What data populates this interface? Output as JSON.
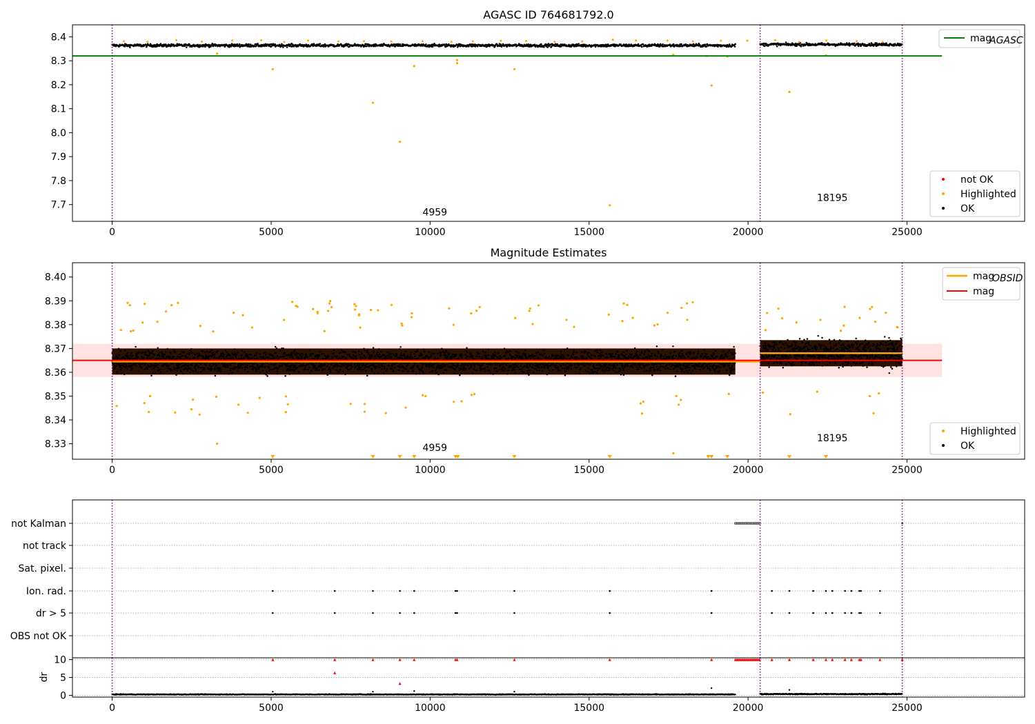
{
  "figure": {
    "colors": {
      "ok": "#000000",
      "highlighted": "#ffa500",
      "not_ok": "#ff0000",
      "agasc_line": "#008000",
      "mag_line": "#ff0000",
      "obsid_line": "#ffa500",
      "obs_boundary": "#800080",
      "band": "#ffc0c0",
      "grid": "#b0b0b0"
    }
  },
  "chart_data": [
    {
      "type": "scatter",
      "title": "AGASC ID 764681792.0",
      "xlabel": "",
      "ylabel": "",
      "xlim": [
        -1250,
        28700
      ],
      "ylim": [
        7.63,
        8.45
      ],
      "xticks": [
        0,
        5000,
        10000,
        15000,
        20000,
        25000
      ],
      "yticks": [
        7.7,
        7.8,
        7.9,
        8.0,
        8.1,
        8.2,
        8.3,
        8.4
      ],
      "grid": false,
      "obs_boundaries": [
        0,
        20380,
        24850
      ],
      "obsid_labels": [
        {
          "text": "4959",
          "x": 10150,
          "y": 7.655
        },
        {
          "text": "18195",
          "x": 22650,
          "y": 7.715
        }
      ],
      "lines": [
        {
          "name": "mag_AGASC",
          "legend_main": "mag",
          "legend_sub": "AGASC",
          "y": 8.32,
          "x": [
            0,
            26100
          ],
          "color": "#008000"
        }
      ],
      "ok_bands": [
        {
          "x": [
            0,
            19600
          ],
          "y_center": 8.364,
          "spread": 0.012
        },
        {
          "x": [
            20380,
            24850
          ],
          "y_center": 8.368,
          "spread": 0.012
        }
      ],
      "highlighted_points": [
        [
          5050,
          8.265
        ],
        [
          9500,
          8.278
        ],
        [
          10850,
          8.29
        ],
        [
          10850,
          8.303
        ],
        [
          12650,
          8.265
        ],
        [
          8200,
          8.125
        ],
        [
          9050,
          7.962
        ],
        [
          18850,
          8.197
        ],
        [
          21300,
          8.17
        ],
        [
          15650,
          7.697
        ],
        [
          3300,
          8.33
        ],
        [
          17650,
          8.325
        ],
        [
          18700,
          8.32
        ],
        [
          19350,
          8.318
        ],
        [
          22450,
          8.322
        ]
      ],
      "legend": {
        "location": "top-right"
      },
      "legend2": {
        "location": "lower-right",
        "entries": [
          {
            "label": "not OK",
            "color": "#ff0000"
          },
          {
            "label": "Highlighted",
            "color": "#ffa500"
          },
          {
            "label": "OK",
            "color": "#000000"
          }
        ]
      }
    },
    {
      "type": "scatter",
      "title": "Magnitude Estimates",
      "xlabel": "",
      "ylabel": "",
      "xlim": [
        -1250,
        28700
      ],
      "ylim": [
        8.3235,
        8.406
      ],
      "xticks": [
        0,
        5000,
        10000,
        15000,
        20000,
        25000
      ],
      "yticks": [
        8.33,
        8.34,
        8.35,
        8.36,
        8.37,
        8.38,
        8.39,
        8.4
      ],
      "grid": false,
      "obs_boundaries": [
        0,
        20380,
        24850
      ],
      "obsid_labels": [
        {
          "text": "4959",
          "x": 10150,
          "y": 8.327
        },
        {
          "text": "18195",
          "x": 22650,
          "y": 8.331
        }
      ],
      "mag_band": [
        8.358,
        8.372
      ],
      "lines": [
        {
          "name": "mag_OBSID",
          "legend_main": "mag",
          "legend_sub": "OBSID",
          "segments": [
            {
              "x": [
                0,
                20380
              ],
              "y": 8.3645
            },
            {
              "x": [
                20380,
                24850
              ],
              "y": 8.368
            }
          ],
          "color": "#ffa500"
        },
        {
          "name": "mag",
          "legend_main": "mag",
          "legend_sub": "",
          "y": 8.365,
          "x": [
            -1250,
            26100
          ],
          "color": "#ff0000"
        }
      ],
      "ok_bands": [
        {
          "x": [
            0,
            19600
          ],
          "y_center": 8.3645,
          "spread": 0.009
        },
        {
          "x": [
            20380,
            24850
          ],
          "y_center": 8.368,
          "spread": 0.011
        }
      ],
      "highlighted_clipped_x": [
        5050,
        8200,
        9050,
        9500,
        10800,
        10870,
        12650,
        15650,
        18750,
        18850,
        19350,
        21300,
        22450
      ],
      "legend": {
        "location": "top-right"
      },
      "legend2": {
        "location": "lower-right",
        "entries": [
          {
            "label": "Highlighted",
            "color": "#ffa500"
          },
          {
            "label": "OK",
            "color": "#000000"
          }
        ]
      }
    },
    {
      "type": "scatter",
      "title": "",
      "xlabel": "",
      "ylabel": "",
      "xlim": [
        -1250,
        28700
      ],
      "xticks": [
        0,
        5000,
        10000,
        15000,
        20000,
        25000
      ],
      "grid": true,
      "obs_boundaries": [
        0,
        20380,
        24850
      ],
      "flag_rows": [
        "not Kalman",
        "not track",
        "Sat. pixel.",
        "Ion. rad.",
        "dr > 5",
        "OBS not OK"
      ],
      "flags": {
        "not Kalman": {
          "x_range": [
            19600,
            20380
          ]
        },
        "not track": [],
        "Sat. pixel.": [],
        "Ion. rad.": [
          5050,
          7000,
          8200,
          9050,
          9500,
          10800,
          10850,
          12650,
          15650,
          18850,
          20750,
          21300,
          22050,
          22450,
          22650,
          23050,
          23250,
          23500,
          23550,
          24150
        ],
        "dr > 5": [
          5050,
          7000,
          8200,
          9050,
          9500,
          10800,
          10850,
          12650,
          15650,
          18850,
          20750,
          21300,
          22050,
          22450,
          22650,
          23050,
          23250,
          23500,
          23550,
          24150
        ],
        "OBS not OK": []
      }
    },
    {
      "type": "scatter",
      "title": "",
      "xlabel": "",
      "ylabel": "dr",
      "xlim": [
        -1250,
        28700
      ],
      "ylim": [
        -0.5,
        10.5
      ],
      "xticks": [
        0,
        5000,
        10000,
        15000,
        20000,
        25000
      ],
      "yticks": [
        0,
        5,
        10
      ],
      "grid": true,
      "obs_boundaries": [
        0,
        20380,
        24850
      ],
      "ok_bands": [
        {
          "x": [
            0,
            19600
          ],
          "y_center": 0.25,
          "spread": 0.2
        },
        {
          "x": [
            20380,
            24850
          ],
          "y_center": 0.35,
          "spread": 0.25
        }
      ],
      "ok_points": [
        [
          5050,
          1.0
        ],
        [
          8200,
          1.0
        ],
        [
          9500,
          1.2
        ],
        [
          12650,
          1.0
        ],
        [
          18850,
          2.0
        ],
        [
          21300,
          1.5
        ]
      ],
      "not_ok_points": [
        [
          5050,
          10
        ],
        [
          7000,
          10
        ],
        [
          8200,
          10
        ],
        [
          9050,
          10
        ],
        [
          9500,
          10
        ],
        [
          10800,
          10
        ],
        [
          10850,
          10
        ],
        [
          12650,
          10
        ],
        [
          15650,
          10
        ],
        [
          18850,
          10
        ],
        [
          20750,
          10
        ],
        [
          21300,
          10
        ],
        [
          22050,
          10
        ],
        [
          22450,
          10
        ],
        [
          22650,
          10
        ],
        [
          23050,
          10
        ],
        [
          23250,
          10
        ],
        [
          23500,
          10
        ],
        [
          23550,
          10
        ],
        [
          24150,
          10
        ],
        [
          24850,
          10
        ],
        [
          7000,
          6.3
        ],
        [
          9050,
          3.3
        ]
      ],
      "not_ok_range": {
        "x": [
          19600,
          20380
        ],
        "y": 10
      }
    }
  ]
}
